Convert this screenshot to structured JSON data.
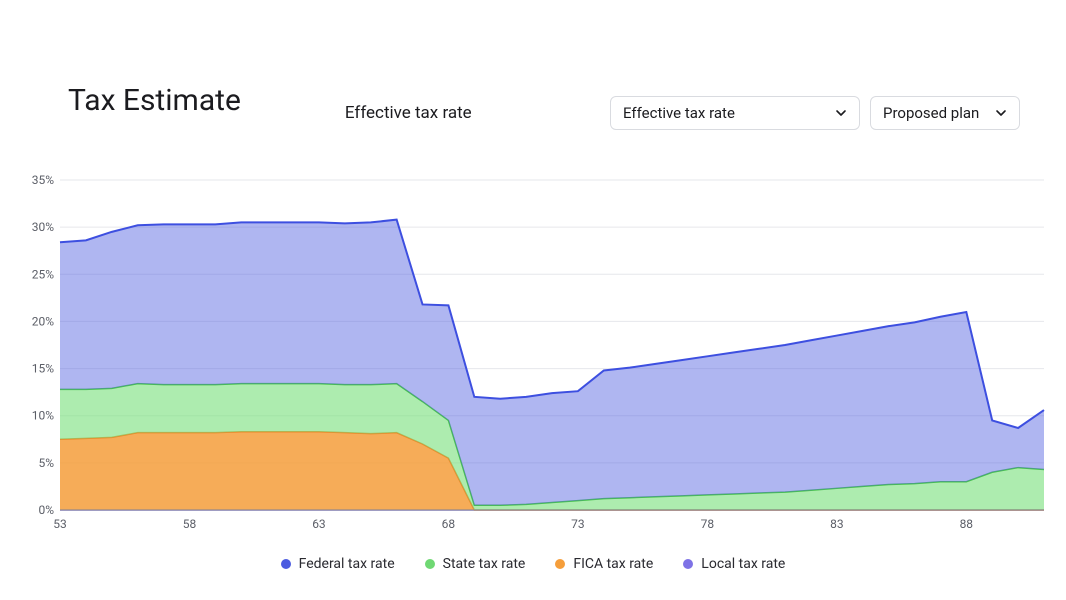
{
  "header": {
    "title": "Tax Estimate",
    "subtitle": "Effective tax rate"
  },
  "controls": {
    "metric_select": {
      "value": "Effective tax rate"
    },
    "plan_select": {
      "value": "Proposed plan"
    }
  },
  "chart": {
    "type": "stacked-area",
    "background_color": "#ffffff",
    "grid_color": "#e6e7eb",
    "axis_label_color": "#5a5d66",
    "axis_font_size": 12,
    "y": {
      "min": 0,
      "max": 35,
      "tick_step": 5,
      "tick_suffix": "%"
    },
    "x": {
      "values": [
        53,
        54,
        55,
        56,
        57,
        58,
        59,
        60,
        61,
        62,
        63,
        64,
        65,
        66,
        67,
        68,
        69,
        70,
        71,
        72,
        73,
        74,
        75,
        76,
        77,
        78,
        79,
        80,
        81,
        82,
        83,
        84,
        85,
        86,
        87,
        88,
        89,
        90,
        91
      ],
      "tick_values": [
        53,
        58,
        63,
        68,
        73,
        78,
        83,
        88
      ]
    },
    "series": [
      {
        "key": "local",
        "label": "Local tax rate",
        "fill": "#7b6ee8",
        "fill_opacity": 0.55,
        "stroke": "#6a5be0",
        "stroke_width": 1.5,
        "values": [
          0,
          0,
          0,
          0,
          0,
          0,
          0,
          0,
          0,
          0,
          0,
          0,
          0,
          0,
          0,
          0,
          0,
          0,
          0,
          0,
          0,
          0,
          0,
          0,
          0,
          0,
          0,
          0,
          0,
          0,
          0,
          0,
          0,
          0,
          0,
          0,
          0,
          0,
          0
        ]
      },
      {
        "key": "fica",
        "label": "FICA tax rate",
        "fill": "#f59e3b",
        "fill_opacity": 0.85,
        "stroke": "#e8892a",
        "stroke_width": 1.5,
        "values": [
          7.5,
          7.6,
          7.7,
          8.2,
          8.2,
          8.2,
          8.2,
          8.3,
          8.3,
          8.3,
          8.3,
          8.2,
          8.1,
          8.2,
          7.0,
          5.5,
          0.0,
          0,
          0,
          0,
          0,
          0,
          0,
          0,
          0,
          0,
          0,
          0,
          0,
          0,
          0,
          0,
          0,
          0,
          0,
          0,
          0,
          0,
          0
        ]
      },
      {
        "key": "state",
        "label": "State tax rate",
        "fill": "#7be07e",
        "fill_opacity": 0.62,
        "stroke": "#46c24a",
        "stroke_width": 1.5,
        "values": [
          5.3,
          5.2,
          5.2,
          5.2,
          5.1,
          5.1,
          5.1,
          5.1,
          5.1,
          5.1,
          5.1,
          5.1,
          5.2,
          5.2,
          4.5,
          4.0,
          0.5,
          0.5,
          0.6,
          0.8,
          1.0,
          1.2,
          1.3,
          1.4,
          1.5,
          1.6,
          1.7,
          1.8,
          1.9,
          2.1,
          2.3,
          2.5,
          2.7,
          2.8,
          3.0,
          3.0,
          4.0,
          4.5,
          4.3
        ]
      },
      {
        "key": "federal",
        "label": "Federal tax rate",
        "fill": "#5766e2",
        "fill_opacity": 0.48,
        "stroke": "#3d4fe0",
        "stroke_width": 2,
        "values": [
          15.6,
          15.8,
          16.6,
          16.8,
          17.0,
          17.0,
          17.0,
          17.1,
          17.1,
          17.1,
          17.1,
          17.1,
          17.2,
          17.4,
          10.3,
          12.2,
          11.5,
          11.3,
          11.4,
          11.6,
          11.6,
          13.6,
          13.8,
          14.1,
          14.4,
          14.7,
          15.0,
          15.3,
          15.6,
          15.9,
          16.2,
          16.5,
          16.8,
          17.1,
          17.5,
          18.0,
          5.5,
          4.2,
          6.3
        ]
      }
    ],
    "legend_order": [
      "federal",
      "state",
      "fica",
      "local"
    ],
    "legend_colors": {
      "federal": "#4b5be0",
      "state": "#6fd873",
      "fica": "#f59e3b",
      "local": "#7e72e6"
    }
  }
}
